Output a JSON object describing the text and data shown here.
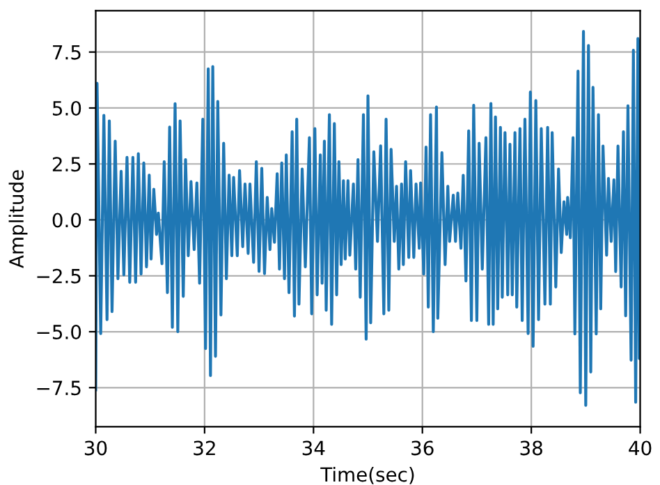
{
  "chart_data": {
    "type": "line",
    "xlabel": "Time(sec)",
    "ylabel": "Amplitude",
    "xlim": [
      30,
      40
    ],
    "ylim": [
      -9.25,
      9.35
    ],
    "xticks": [
      30,
      32,
      34,
      36,
      38,
      40
    ],
    "yticks": [
      {
        "value": -7.5,
        "label": "−7.5"
      },
      {
        "value": -5.0,
        "label": "−5.0"
      },
      {
        "value": -2.5,
        "label": "−2.5"
      },
      {
        "value": 0.0,
        "label": "0.0"
      },
      {
        "value": 2.5,
        "label": "2.5"
      },
      {
        "value": 5.0,
        "label": "5.0"
      },
      {
        "value": 7.5,
        "label": "7.5"
      }
    ],
    "grid": true,
    "series": [
      {
        "color": "#1f77b4",
        "x": [
          30.0,
          30.025,
          30.092,
          30.15,
          30.208,
          30.25,
          30.3,
          30.358,
          30.408,
          30.467,
          30.517,
          30.575,
          30.625,
          30.683,
          30.733,
          30.783,
          30.833,
          30.883,
          30.933,
          30.983,
          31.017,
          31.067,
          31.117,
          31.15,
          31.217,
          31.258,
          31.317,
          31.358,
          31.408,
          31.458,
          31.508,
          31.55,
          31.608,
          31.65,
          31.7,
          31.75,
          31.808,
          31.858,
          31.908,
          31.967,
          32.017,
          32.067,
          32.108,
          32.15,
          32.2,
          32.242,
          32.3,
          32.35,
          32.4,
          32.45,
          32.5,
          32.533,
          32.6,
          32.642,
          32.7,
          32.742,
          32.8,
          32.833,
          32.9,
          32.95,
          33.0,
          33.05,
          33.1,
          33.15,
          33.2,
          33.233,
          33.283,
          33.333,
          33.375,
          33.417,
          33.467,
          33.5,
          33.55,
          33.608,
          33.65,
          33.692,
          33.733,
          33.792,
          33.85,
          33.925,
          33.967,
          34.025,
          34.067,
          34.125,
          34.158,
          34.2,
          34.233,
          34.292,
          34.333,
          34.383,
          34.425,
          34.467,
          34.508,
          34.55,
          34.583,
          34.633,
          34.667,
          34.733,
          34.775,
          34.817,
          34.858,
          34.917,
          34.967,
          35.0,
          35.05,
          35.108,
          35.175,
          35.233,
          35.292,
          35.333,
          35.383,
          35.425,
          35.483,
          35.525,
          35.567,
          35.617,
          35.65,
          35.692,
          35.75,
          35.783,
          35.842,
          35.883,
          35.942,
          35.967,
          36.025,
          36.067,
          36.108,
          36.15,
          36.2,
          36.258,
          36.283,
          36.358,
          36.417,
          36.467,
          36.5,
          36.567,
          36.608,
          36.65,
          36.708,
          36.75,
          36.8,
          36.85,
          36.9,
          36.942,
          37.0,
          37.042,
          37.1,
          37.167,
          37.217,
          37.258,
          37.3,
          37.342,
          37.383,
          37.433,
          37.467,
          37.517,
          37.567,
          37.608,
          37.65,
          37.7,
          37.733,
          37.792,
          37.833,
          37.883,
          37.942,
          37.983,
          38.033,
          38.083,
          38.133,
          38.183,
          38.25,
          38.3,
          38.35,
          38.383,
          38.45,
          38.5,
          38.55,
          38.6,
          38.65,
          38.667,
          38.717,
          38.767,
          38.8,
          38.858,
          38.9,
          38.958,
          39.0,
          39.05,
          39.092,
          39.133,
          39.192,
          39.233,
          39.275,
          39.317,
          39.383,
          39.417,
          39.467,
          39.517,
          39.55,
          39.592,
          39.65,
          39.692,
          39.733,
          39.775,
          39.833,
          39.875,
          39.917,
          39.958,
          39.983,
          40.0
        ],
        "values": [
          -7.6,
          6.1,
          -5.08,
          4.67,
          -4.46,
          4.42,
          -4.1,
          3.52,
          -2.63,
          2.17,
          -2.46,
          2.79,
          -2.79,
          2.79,
          -2.79,
          2.96,
          -2.42,
          2.54,
          -2.1,
          2.0,
          -1.75,
          1.37,
          -0.65,
          0.3,
          -1.96,
          2.6,
          -3.25,
          4.15,
          -4.8,
          5.19,
          -5.0,
          4.42,
          -3.42,
          2.69,
          -1.6,
          1.71,
          -1.33,
          1.65,
          -2.83,
          4.5,
          -5.75,
          6.75,
          -6.96,
          6.85,
          -6.1,
          5.29,
          -4.25,
          3.42,
          -2.63,
          2.0,
          -1.6,
          1.9,
          -1.6,
          2.2,
          -1.2,
          1.6,
          -1.5,
          1.6,
          -1.9,
          2.6,
          -2.3,
          2.3,
          -2.4,
          1.0,
          -1.33,
          0.5,
          -1.0,
          2.06,
          -2.2,
          2.54,
          -2.63,
          2.9,
          -3.25,
          3.94,
          -4.3,
          4.5,
          -3.77,
          2.27,
          -2.1,
          3.67,
          -4.2,
          4.08,
          -3.35,
          2.9,
          -2.83,
          3.52,
          -4.04,
          4.7,
          -4.67,
          4.3,
          -3.35,
          2.6,
          -2.0,
          1.75,
          -1.75,
          1.75,
          -1.58,
          1.6,
          -2.2,
          2.69,
          -3.46,
          4.7,
          -5.33,
          5.54,
          -4.6,
          3.04,
          -0.96,
          3.31,
          -4.2,
          4.5,
          -4.04,
          3.15,
          -0.96,
          1.5,
          -2.2,
          1.6,
          -2.0,
          2.6,
          -1.68,
          2.2,
          -1.68,
          1.6,
          -1.27,
          1.65,
          -2.42,
          3.25,
          -3.9,
          4.7,
          -5.0,
          5.04,
          -4.4,
          3.0,
          -2.0,
          1.5,
          -0.96,
          1.1,
          -0.96,
          1.2,
          -1.27,
          1.99,
          -2.73,
          3.98,
          -4.5,
          5.12,
          -4.5,
          3.42,
          -2.2,
          3.67,
          -4.67,
          5.2,
          -4.67,
          4.6,
          -3.98,
          4.13,
          -3.46,
          3.9,
          -3.35,
          3.38,
          -3.35,
          3.9,
          -3.9,
          4.08,
          -4.5,
          4.5,
          -5.08,
          5.71,
          -5.65,
          5.33,
          -4.46,
          4.08,
          -3.77,
          4.13,
          -3.77,
          3.9,
          -3.0,
          2.27,
          -1.46,
          0.81,
          -0.65,
          1.0,
          -0.8,
          3.67,
          -5.1,
          6.65,
          -7.73,
          8.42,
          -8.29,
          7.79,
          -6.8,
          5.92,
          -5.1,
          4.7,
          -3.98,
          3.3,
          -1.58,
          1.85,
          -0.96,
          1.79,
          -2.31,
          3.3,
          -3.0,
          3.94,
          -4.29,
          5.1,
          -6.27,
          7.58,
          -8.15,
          8.1,
          -6.2,
          8.0
        ]
      }
    ]
  }
}
